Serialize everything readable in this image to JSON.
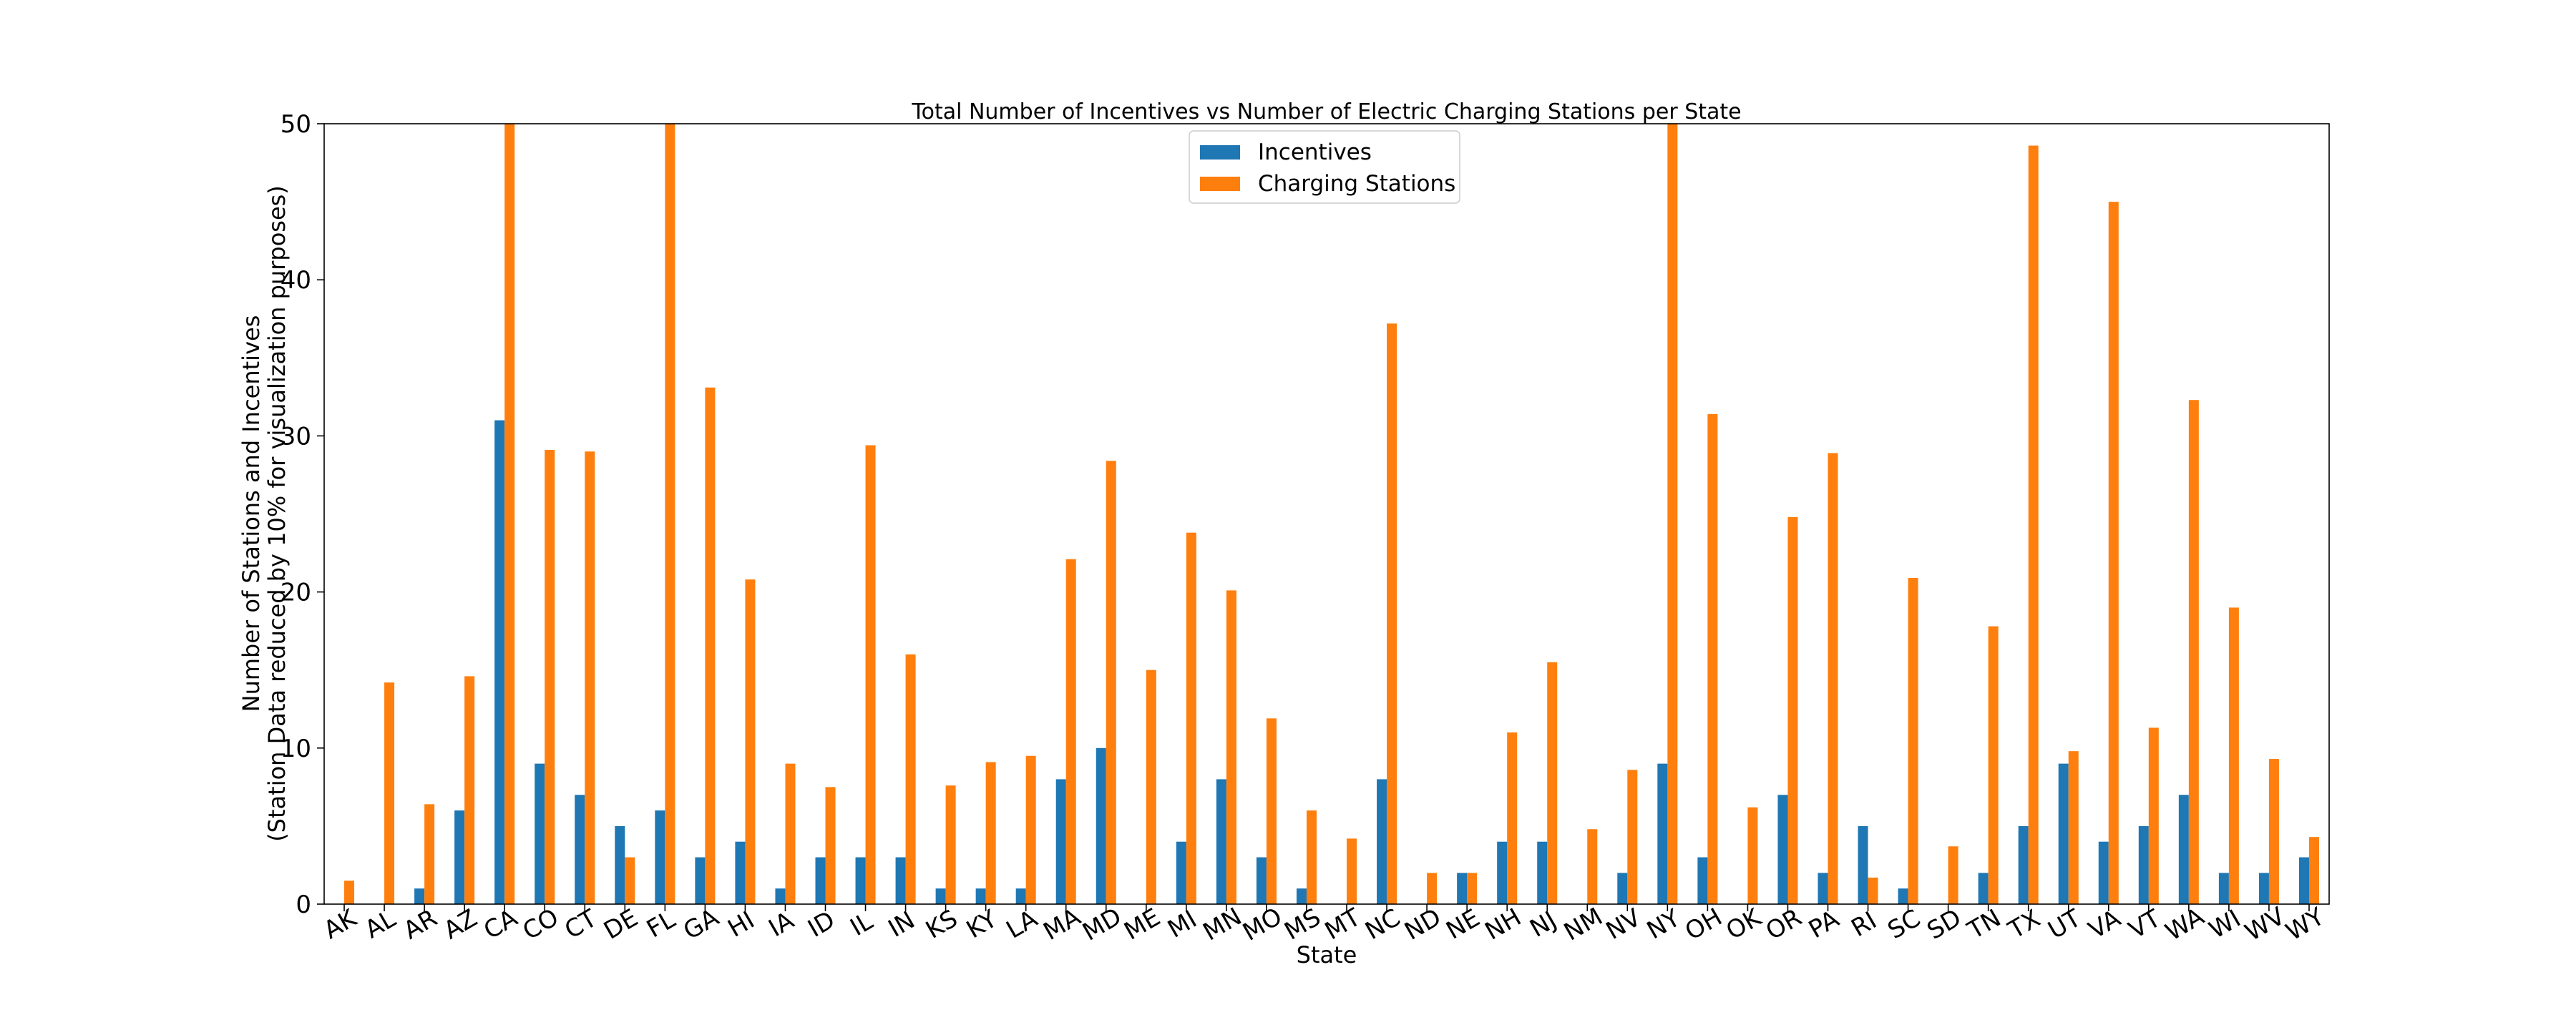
{
  "chart_data": {
    "type": "bar",
    "title": "Total Number of Incentives vs Number of Electric Charging Stations per State",
    "xlabel": "State",
    "ylabel": "Number of Stations and Incentives",
    "ylabel_line2": "(Station Data reduced by 10% for visualization purposes)",
    "ylim": [
      0,
      50
    ],
    "yticks": [
      "0",
      "10",
      "20",
      "30",
      "40",
      "50"
    ],
    "grid": false,
    "legend_position": "top-center",
    "categories": [
      "AK",
      "AL",
      "AR",
      "AZ",
      "CA",
      "CO",
      "CT",
      "DE",
      "FL",
      "GA",
      "HI",
      "IA",
      "ID",
      "IL",
      "IN",
      "KS",
      "KY",
      "LA",
      "MA",
      "MD",
      "ME",
      "MI",
      "MN",
      "MO",
      "MS",
      "MT",
      "NC",
      "ND",
      "NE",
      "NH",
      "NJ",
      "NM",
      "NV",
      "NY",
      "OH",
      "OK",
      "OR",
      "PA",
      "RI",
      "SC",
      "SD",
      "TN",
      "TX",
      "UT",
      "VA",
      "VT",
      "WA",
      "WI",
      "WV",
      "WY"
    ],
    "series": [
      {
        "name": "Incentives",
        "color": "#1f77b4",
        "values": [
          0,
          0,
          1,
          6,
          31,
          9,
          7,
          5,
          6,
          3,
          4,
          1,
          3,
          3,
          3,
          1,
          1,
          1,
          8,
          10,
          0,
          4,
          8,
          3,
          1,
          0,
          8,
          0,
          2,
          4,
          4,
          0,
          2,
          9,
          3,
          0,
          7,
          2,
          5,
          1,
          0,
          2,
          5,
          9,
          4,
          5,
          7,
          2,
          2,
          3
        ]
      },
      {
        "name": "Charging Stations",
        "color": "#ff7f0e",
        "values": [
          1.5,
          14.2,
          6.4,
          14.6,
          50,
          29.1,
          29,
          3,
          50,
          33.1,
          20.8,
          9,
          7.5,
          29.4,
          16,
          7.6,
          9.1,
          9.5,
          22.1,
          28.4,
          15,
          23.8,
          20.1,
          11.9,
          6,
          4.2,
          37.2,
          2,
          2,
          11,
          15.5,
          4.8,
          8.6,
          50,
          31.4,
          6.2,
          24.8,
          28.9,
          1.7,
          20.9,
          3.7,
          17.8,
          48.6,
          9.8,
          45,
          11.3,
          32.3,
          19,
          9.3,
          4.3
        ]
      }
    ]
  }
}
